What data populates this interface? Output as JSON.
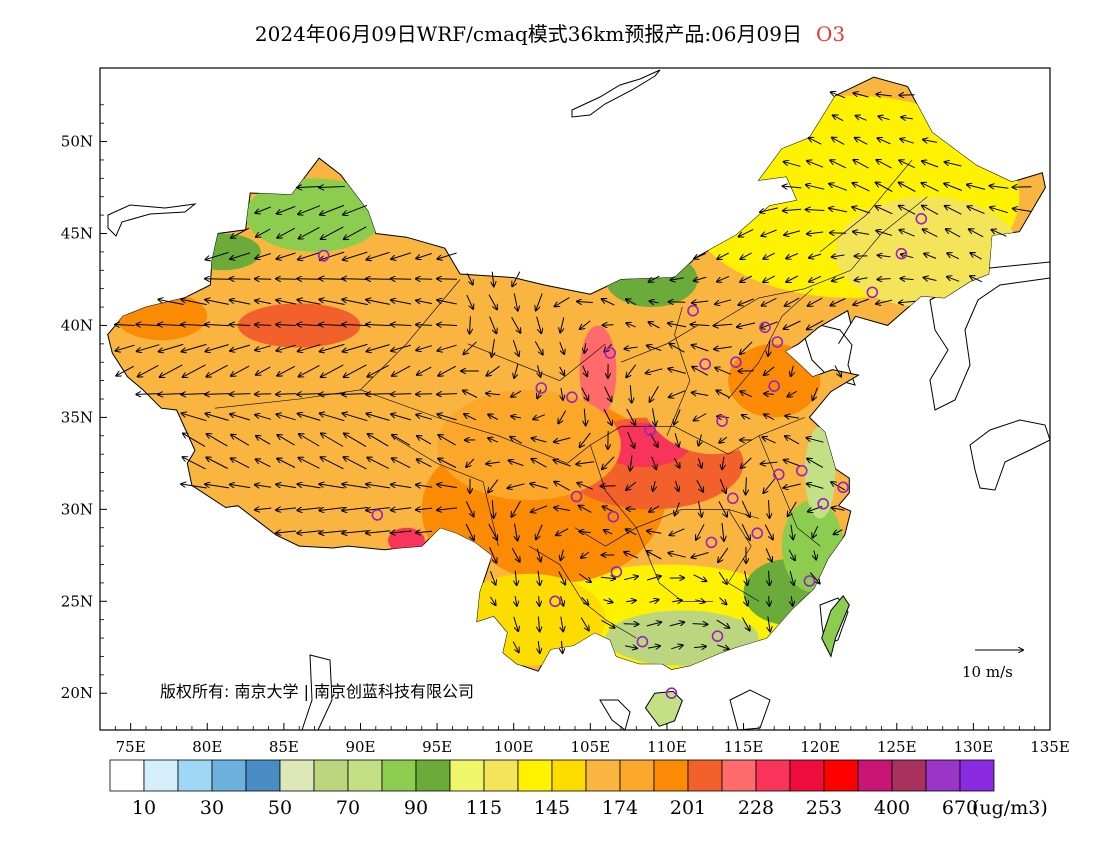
{
  "title": {
    "text": "2024年06月09日WRF/cmaq模式36km预报产品:06月09日",
    "species": "O3"
  },
  "map": {
    "lon_range": [
      73,
      135
    ],
    "lat_range": [
      18,
      54
    ],
    "lat_ticks": [
      "50N",
      "45N",
      "40N",
      "35N",
      "30N",
      "25N",
      "20N"
    ],
    "lon_ticks": [
      "75E",
      "80E",
      "85E",
      "90E",
      "95E",
      "100E",
      "105E",
      "110E",
      "115E",
      "120E",
      "125E",
      "130E",
      "135E"
    ],
    "copyright": "版权所有: 南京大学 | 南京创蓝科技有限公司",
    "wind_reference": "10 m/s",
    "stations": [
      [
        87.6,
        43.8
      ],
      [
        91.1,
        29.7
      ],
      [
        101.8,
        36.6
      ],
      [
        103.8,
        36.1
      ],
      [
        106.3,
        38.5
      ],
      [
        104.1,
        30.7
      ],
      [
        106.5,
        29.6
      ],
      [
        106.7,
        26.6
      ],
      [
        102.7,
        25.0
      ],
      [
        108.4,
        22.8
      ],
      [
        110.3,
        20.0
      ],
      [
        113.3,
        23.1
      ],
      [
        112.9,
        28.2
      ],
      [
        115.9,
        28.7
      ],
      [
        114.3,
        30.6
      ],
      [
        108.9,
        34.3
      ],
      [
        113.6,
        34.8
      ],
      [
        112.5,
        37.9
      ],
      [
        114.5,
        38.0
      ],
      [
        116.4,
        39.9
      ],
      [
        117.2,
        39.1
      ],
      [
        117.0,
        36.7
      ],
      [
        117.3,
        31.9
      ],
      [
        118.8,
        32.1
      ],
      [
        120.2,
        30.3
      ],
      [
        121.5,
        31.2
      ],
      [
        119.3,
        26.1
      ],
      [
        111.7,
        40.8
      ],
      [
        123.4,
        41.8
      ],
      [
        125.3,
        43.9
      ],
      [
        126.6,
        45.8
      ]
    ]
  },
  "legend": {
    "unit": "(ug/m3)",
    "labels": [
      "10",
      "30",
      "50",
      "70",
      "90",
      "115",
      "145",
      "174",
      "201",
      "228",
      "253",
      "400",
      "670"
    ],
    "colors": [
      "#ffffff",
      "#d4eefb",
      "#9fd8f4",
      "#6db1de",
      "#4a8cc4",
      "#dde8b8",
      "#bcd67f",
      "#c4e085",
      "#8ccd4f",
      "#6aab3a",
      "#f0f66a",
      "#f4e45a",
      "#fff200",
      "#fddd00",
      "#f9b540",
      "#fba72a",
      "#fb8a05",
      "#f2612c",
      "#ff6b6b",
      "#f8345a",
      "#ee0d3d",
      "#ff0000",
      "#c91573",
      "#a8325b",
      "#9a35c7",
      "#8a2be2"
    ]
  }
}
